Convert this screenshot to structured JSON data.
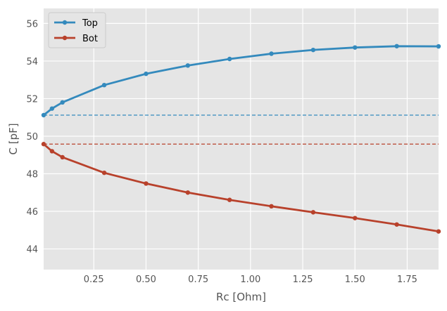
{
  "chart_data": {
    "type": "line",
    "title": "",
    "xlabel": "Rc [Ohm]",
    "ylabel": "C [pF]",
    "xlim": [
      0.01,
      1.9
    ],
    "ylim": [
      42.9,
      56.8
    ],
    "xticks": [
      0.25,
      0.5,
      0.75,
      1.0,
      1.25,
      1.5,
      1.75
    ],
    "xtick_labels": [
      "0.25",
      "0.50",
      "0.75",
      "1.00",
      "1.25",
      "1.50",
      "1.75"
    ],
    "yticks": [
      44,
      46,
      48,
      50,
      52,
      54,
      56
    ],
    "ytick_labels": [
      "44",
      "46",
      "48",
      "50",
      "52",
      "54",
      "56"
    ],
    "grid": true,
    "legend_position": "top-left",
    "x": [
      0.01,
      0.05,
      0.1,
      0.3,
      0.5,
      0.7,
      0.9,
      1.1,
      1.3,
      1.5,
      1.7,
      1.9
    ],
    "series": [
      {
        "name": "Top",
        "color": "#348abd",
        "values": [
          51.12,
          51.47,
          51.8,
          52.72,
          53.32,
          53.76,
          54.11,
          54.39,
          54.59,
          54.72,
          54.79,
          54.78
        ]
      },
      {
        "name": "Bot",
        "color": "#b8412b",
        "values": [
          49.58,
          49.2,
          48.88,
          48.05,
          47.48,
          47.0,
          46.61,
          46.27,
          45.95,
          45.64,
          45.3,
          44.93
        ]
      }
    ],
    "reference_lines": [
      {
        "y": 51.12,
        "color": "#348abd",
        "style": "dashed"
      },
      {
        "y": 49.58,
        "color": "#b8412b",
        "style": "dashed"
      }
    ],
    "background_color": "#e5e5e5",
    "grid_color": "#ffffff"
  }
}
